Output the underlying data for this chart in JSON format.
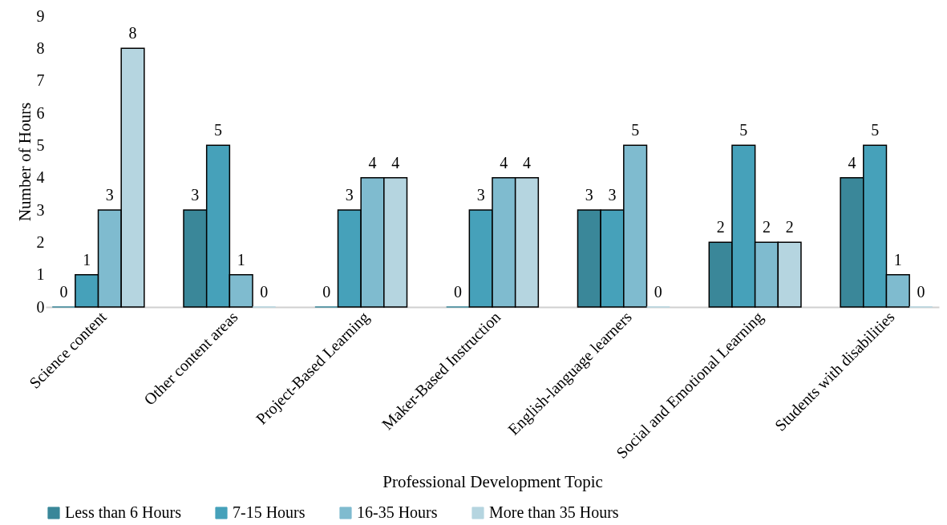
{
  "chart_data": {
    "type": "bar",
    "xlabel": "Professional Development Topic",
    "ylabel": "Number of Hours",
    "categories": [
      "Science content",
      "Other content areas",
      "Project-Based Learning",
      "Maker-Based Instruction",
      "English-language learners",
      "Social and Emotional Learning",
      "Students with disabilities"
    ],
    "series": [
      {
        "name": "Less than 6 Hours",
        "color": "#3a8799",
        "values": [
          0,
          3,
          0,
          0,
          3,
          2,
          4
        ]
      },
      {
        "name": "7-15 Hours",
        "color": "#46a1ba",
        "values": [
          1,
          5,
          3,
          3,
          3,
          5,
          5
        ]
      },
      {
        "name": "16-35 Hours",
        "color": "#7fbbcf",
        "values": [
          3,
          1,
          4,
          4,
          5,
          2,
          1
        ]
      },
      {
        "name": "More than 35 Hours",
        "color": "#b5d5e0",
        "values": [
          8,
          0,
          4,
          4,
          0,
          2,
          0
        ]
      }
    ],
    "ylim": [
      0,
      9
    ],
    "yticks": [
      0,
      1,
      2,
      3,
      4,
      5,
      6,
      7,
      8,
      9
    ],
    "grid": false,
    "legend": "bottom",
    "data_labels": true
  }
}
